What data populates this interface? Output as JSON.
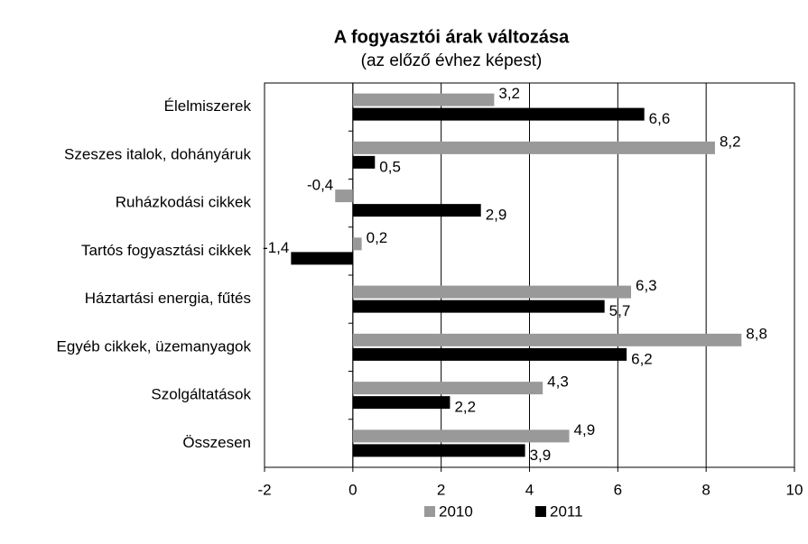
{
  "chart_data": {
    "type": "bar",
    "orientation": "horizontal",
    "title": "A fogyasztói árak változása",
    "subtitle": "(az előző évhez képest)",
    "categories": [
      "Élelmiszerek",
      "Szeszes italok, dohányáruk",
      "Ruházkodási cikkek",
      "Tartós fogyasztási cikkek",
      "Háztartási energia, fűtés",
      "Egyéb cikkek, üzemanyagok",
      "Szolgáltatások",
      "Összesen"
    ],
    "series": [
      {
        "name": "2010",
        "color": "#999999",
        "values": [
          3.2,
          8.2,
          -0.4,
          0.2,
          6.3,
          8.8,
          4.3,
          4.9
        ],
        "value_labels": [
          "3,2",
          "8,2",
          "-0,4",
          "0,2",
          "6,3",
          "8,8",
          "4,3",
          "4,9"
        ]
      },
      {
        "name": "2011",
        "color": "#000000",
        "values": [
          6.6,
          0.5,
          2.9,
          -1.4,
          5.7,
          6.2,
          2.2,
          3.9
        ],
        "value_labels": [
          "6,6",
          "0,5",
          "2,9",
          "-1,4",
          "5,7",
          "6,2",
          "2,2",
          "3,9"
        ]
      }
    ],
    "xlim": [
      -2,
      10
    ],
    "xticks": [
      -2,
      0,
      2,
      4,
      6,
      8,
      10
    ],
    "grid": true,
    "legend": "bottom"
  }
}
